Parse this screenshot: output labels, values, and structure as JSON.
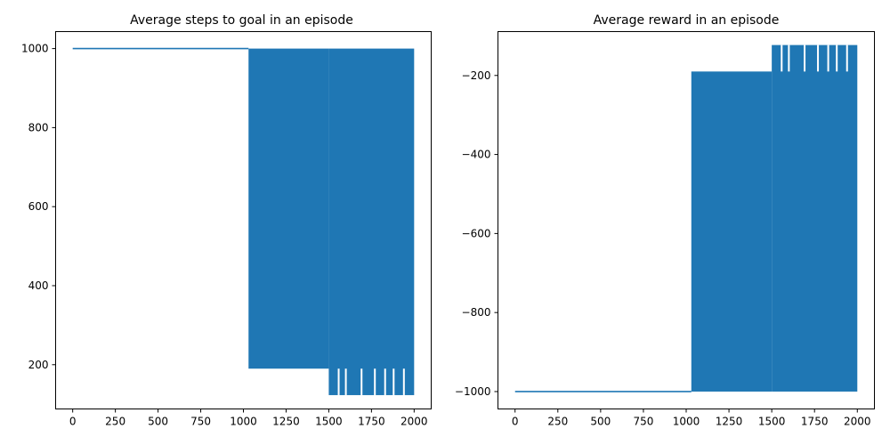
{
  "figure": {
    "background": "#ffffff",
    "series_color": "#1f77b4"
  },
  "chart_data": [
    {
      "type": "line",
      "title": "Average steps to goal in an episode",
      "xlabel": "",
      "ylabel": "",
      "xlim": [
        -100,
        2100
      ],
      "ylim": [
        88,
        1043
      ],
      "xticks": [
        0,
        250,
        500,
        750,
        1000,
        1250,
        1500,
        1750,
        2000
      ],
      "yticks": [
        200,
        400,
        600,
        800,
        1000
      ],
      "grid": false,
      "series": [
        {
          "color": "#1f77b4",
          "segments": [
            {
              "x_start": 0,
              "x_end": 1030,
              "y_min": 1000,
              "y_max": 1000,
              "pattern": "constant"
            },
            {
              "x_start": 1030,
              "x_end": 1500,
              "y_min": 190,
              "y_max": 1000,
              "pattern": "oscillating"
            },
            {
              "x_start": 1500,
              "x_end": 2000,
              "y_min": 123,
              "y_max": 1000,
              "pattern": "oscillating"
            }
          ],
          "gaps": [
            {
              "x": 1558,
              "y_min": 123,
              "y_max": 190
            },
            {
              "x": 1600,
              "y_min": 123,
              "y_max": 190
            },
            {
              "x": 1692,
              "y_min": 123,
              "y_max": 190
            },
            {
              "x": 1770,
              "y_min": 123,
              "y_max": 190
            },
            {
              "x": 1830,
              "y_min": 123,
              "y_max": 190
            },
            {
              "x": 1880,
              "y_min": 123,
              "y_max": 190
            },
            {
              "x": 1940,
              "y_min": 123,
              "y_max": 190
            }
          ]
        }
      ]
    },
    {
      "type": "line",
      "title": "Average reward in an episode",
      "xlabel": "",
      "ylabel": "",
      "xlim": [
        -100,
        2100
      ],
      "ylim": [
        -1044,
        -89
      ],
      "xticks": [
        0,
        250,
        500,
        750,
        1000,
        1250,
        1500,
        1750,
        2000
      ],
      "yticks": [
        -1000,
        -800,
        -600,
        -400,
        -200
      ],
      "grid": false,
      "series": [
        {
          "color": "#1f77b4",
          "segments": [
            {
              "x_start": 0,
              "x_end": 1030,
              "y_min": -1000,
              "y_max": -1000,
              "pattern": "constant"
            },
            {
              "x_start": 1030,
              "x_end": 1500,
              "y_min": -1000,
              "y_max": -190,
              "pattern": "oscillating"
            },
            {
              "x_start": 1500,
              "x_end": 2000,
              "y_min": -1000,
              "y_max": -123,
              "pattern": "oscillating"
            }
          ],
          "gaps": [
            {
              "x": 1558,
              "y_min": -190,
              "y_max": -123
            },
            {
              "x": 1600,
              "y_min": -190,
              "y_max": -123
            },
            {
              "x": 1692,
              "y_min": -190,
              "y_max": -123
            },
            {
              "x": 1770,
              "y_min": -190,
              "y_max": -123
            },
            {
              "x": 1830,
              "y_min": -190,
              "y_max": -123
            },
            {
              "x": 1880,
              "y_min": -190,
              "y_max": -123
            },
            {
              "x": 1940,
              "y_min": -190,
              "y_max": -123
            }
          ]
        }
      ]
    }
  ]
}
